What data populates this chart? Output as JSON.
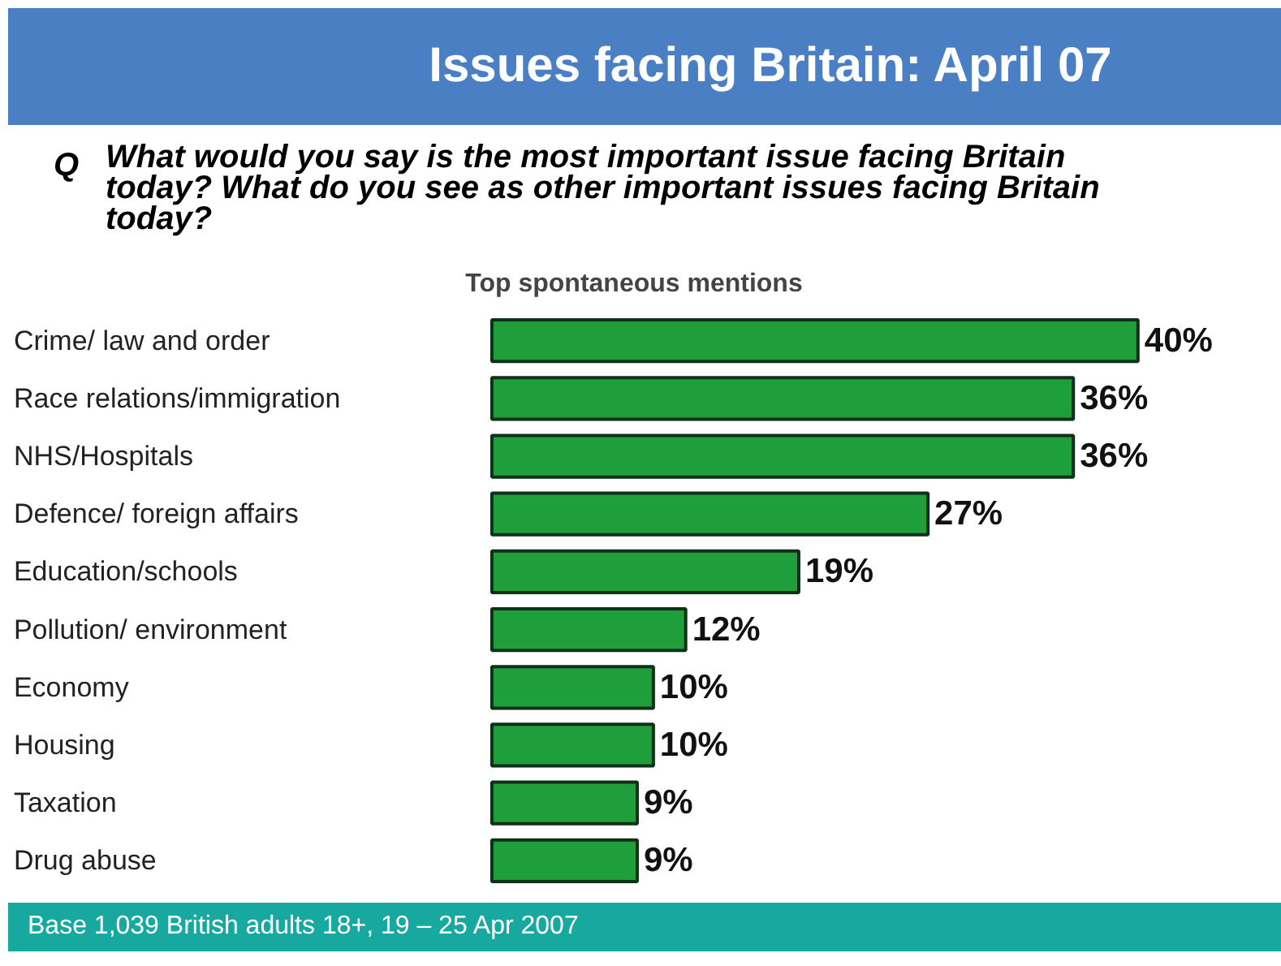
{
  "chart_data": {
    "type": "bar",
    "orientation": "horizontal",
    "title": "Issues facing Britain: April 07",
    "subtitle": "What would you say is the most important issue facing Britain today? What do you see as other important issues facing Britain today?",
    "xlabel": "Top spontaneous mentions",
    "categories": [
      "Crime/ law and order",
      "Race relations/immigration",
      "NHS/Hospitals",
      "Defence/ foreign affairs",
      "Education/schools",
      "Pollution/ environment",
      "Economy",
      "Housing",
      "Taxation",
      "Drug abuse"
    ],
    "values": [
      40,
      36,
      36,
      27,
      19,
      12,
      10,
      10,
      9,
      9
    ],
    "value_labels": [
      "40%",
      "36%",
      "36%",
      "27%",
      "19%",
      "12%",
      "10%",
      "10%",
      "9%",
      "9%"
    ],
    "color": "#1f9e3c",
    "annotations": [
      "Q",
      "Base 1,039 British adults 18+, 19 – 25 Apr 2007"
    ]
  }
}
